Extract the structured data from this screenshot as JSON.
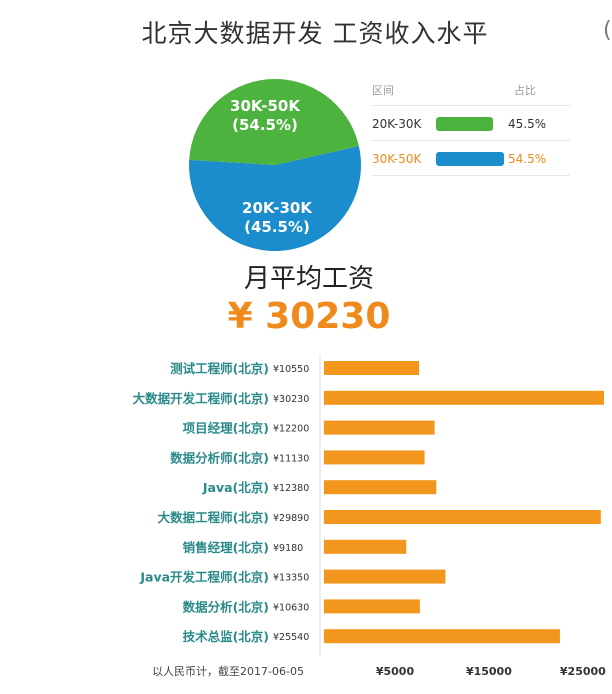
{
  "header": {
    "title": "北京大数据开发 工资收入水平",
    "edge_glyph": "("
  },
  "pie": {
    "slices": [
      {
        "label": "30K-50K",
        "pct_text": "(54.5%)",
        "value": 54.5,
        "color": "#1b8ccc"
      },
      {
        "label": "20K-30K",
        "pct_text": "(45.5%)",
        "value": 45.5,
        "color": "#4db33f"
      }
    ]
  },
  "legend_table": {
    "col_range": "区间",
    "col_ratio": "占比",
    "rows": [
      {
        "range": "20K-30K",
        "ratio": "45.5%",
        "value": 45.5,
        "color": "#4db33f",
        "text_color": "#333333"
      },
      {
        "range": "30K-50K",
        "ratio": "54.5%",
        "value": 54.5,
        "color": "#1b8ccc",
        "text_color": "#f08a1c"
      }
    ]
  },
  "summary": {
    "title": "月平均工资",
    "value": "¥ 30230",
    "accent": "#f08a1c"
  },
  "chart_data": {
    "type": "bar",
    "orientation": "horizontal",
    "categories": [
      "测试工程师(北京)",
      "大数据开发工程师(北京)",
      "项目经理(北京)",
      "数据分析师(北京)",
      "Java(北京)",
      "大数据工程师(北京)",
      "销售经理(北京)",
      "Java开发工程师(北京)",
      "数据分析(北京)",
      "技术总监(北京)"
    ],
    "values": [
      10550,
      30230,
      12200,
      11130,
      12380,
      29890,
      9180,
      13350,
      10630,
      25540
    ],
    "value_labels": [
      "¥10550",
      "¥30230",
      "¥12200",
      "¥11130",
      "¥12380",
      "¥29890",
      "¥9180",
      "¥13350",
      "¥10630",
      "¥25540"
    ],
    "x_ticks": [
      5000,
      15000,
      25000
    ],
    "x_tick_labels": [
      "¥5000",
      "¥15000",
      "¥25000"
    ],
    "xlim": [
      0,
      31000
    ],
    "note": "以人民币计，截至2017-06-05",
    "bar_color": "#f2961e",
    "label_color": "#2a8a8a",
    "title": "",
    "xlabel": "",
    "ylabel": ""
  }
}
